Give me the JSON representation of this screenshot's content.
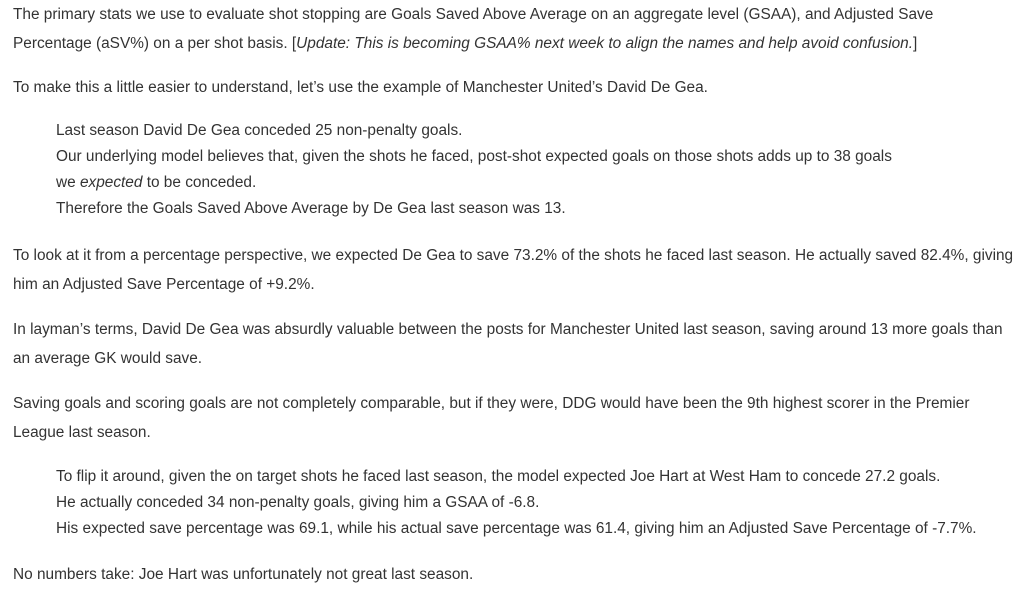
{
  "paragraph_1": {
    "text": "The primary stats we use to evaluate shot stopping are Goals Saved Above Average on an aggregate level (GSAA), and Adjusted Save Percentage (aSV%) on a per shot basis. [",
    "update_italic": "Update: This is becoming GSAA% next week to align the names and help avoid confusion.",
    "closing": "]"
  },
  "paragraph_2": "To make this a little easier to understand, let’s use the example of Manchester United’s David De Gea.",
  "quote_1": {
    "line_1": "Last season David De Gea conceded 25 non-penalty goals.",
    "line_2": "Our underlying model believes that, given the shots he faced, post-shot expected goals on those shots adds up to 38 goals",
    "line_3_pre": "we ",
    "line_3_italic": "expected",
    "line_3_post": " to be conceded.",
    "line_4": "Therefore the Goals Saved Above Average by De Gea last season was 13."
  },
  "paragraph_3": "To look at it from a percentage perspective, we expected De Gea to save 73.2% of the shots he faced last season. He actually saved 82.4%, giving him an Adjusted Save Percentage of +9.2%.",
  "paragraph_4": "In layman’s terms, David De Gea was absurdly valuable between the posts for Manchester United last season, saving around 13 more goals than an average GK would save.",
  "paragraph_5": "Saving goals and scoring goals are not completely comparable, but if they were, DDG would have been the 9th highest scorer in the Premier League last season.",
  "quote_2": {
    "line_1": "To flip it around, given the on target shots he faced last season, the model expected Joe Hart at West Ham to concede 27.2 goals.",
    "line_2": "He actually conceded 34 non-penalty goals, giving him a GSAA of -6.8.",
    "line_3": "His expected save percentage was 69.1, while his actual save percentage was 61.4, giving him an Adjusted Save Percentage of -7.7%."
  },
  "paragraph_6": "No numbers take: Joe Hart was unfortunately not great last season."
}
